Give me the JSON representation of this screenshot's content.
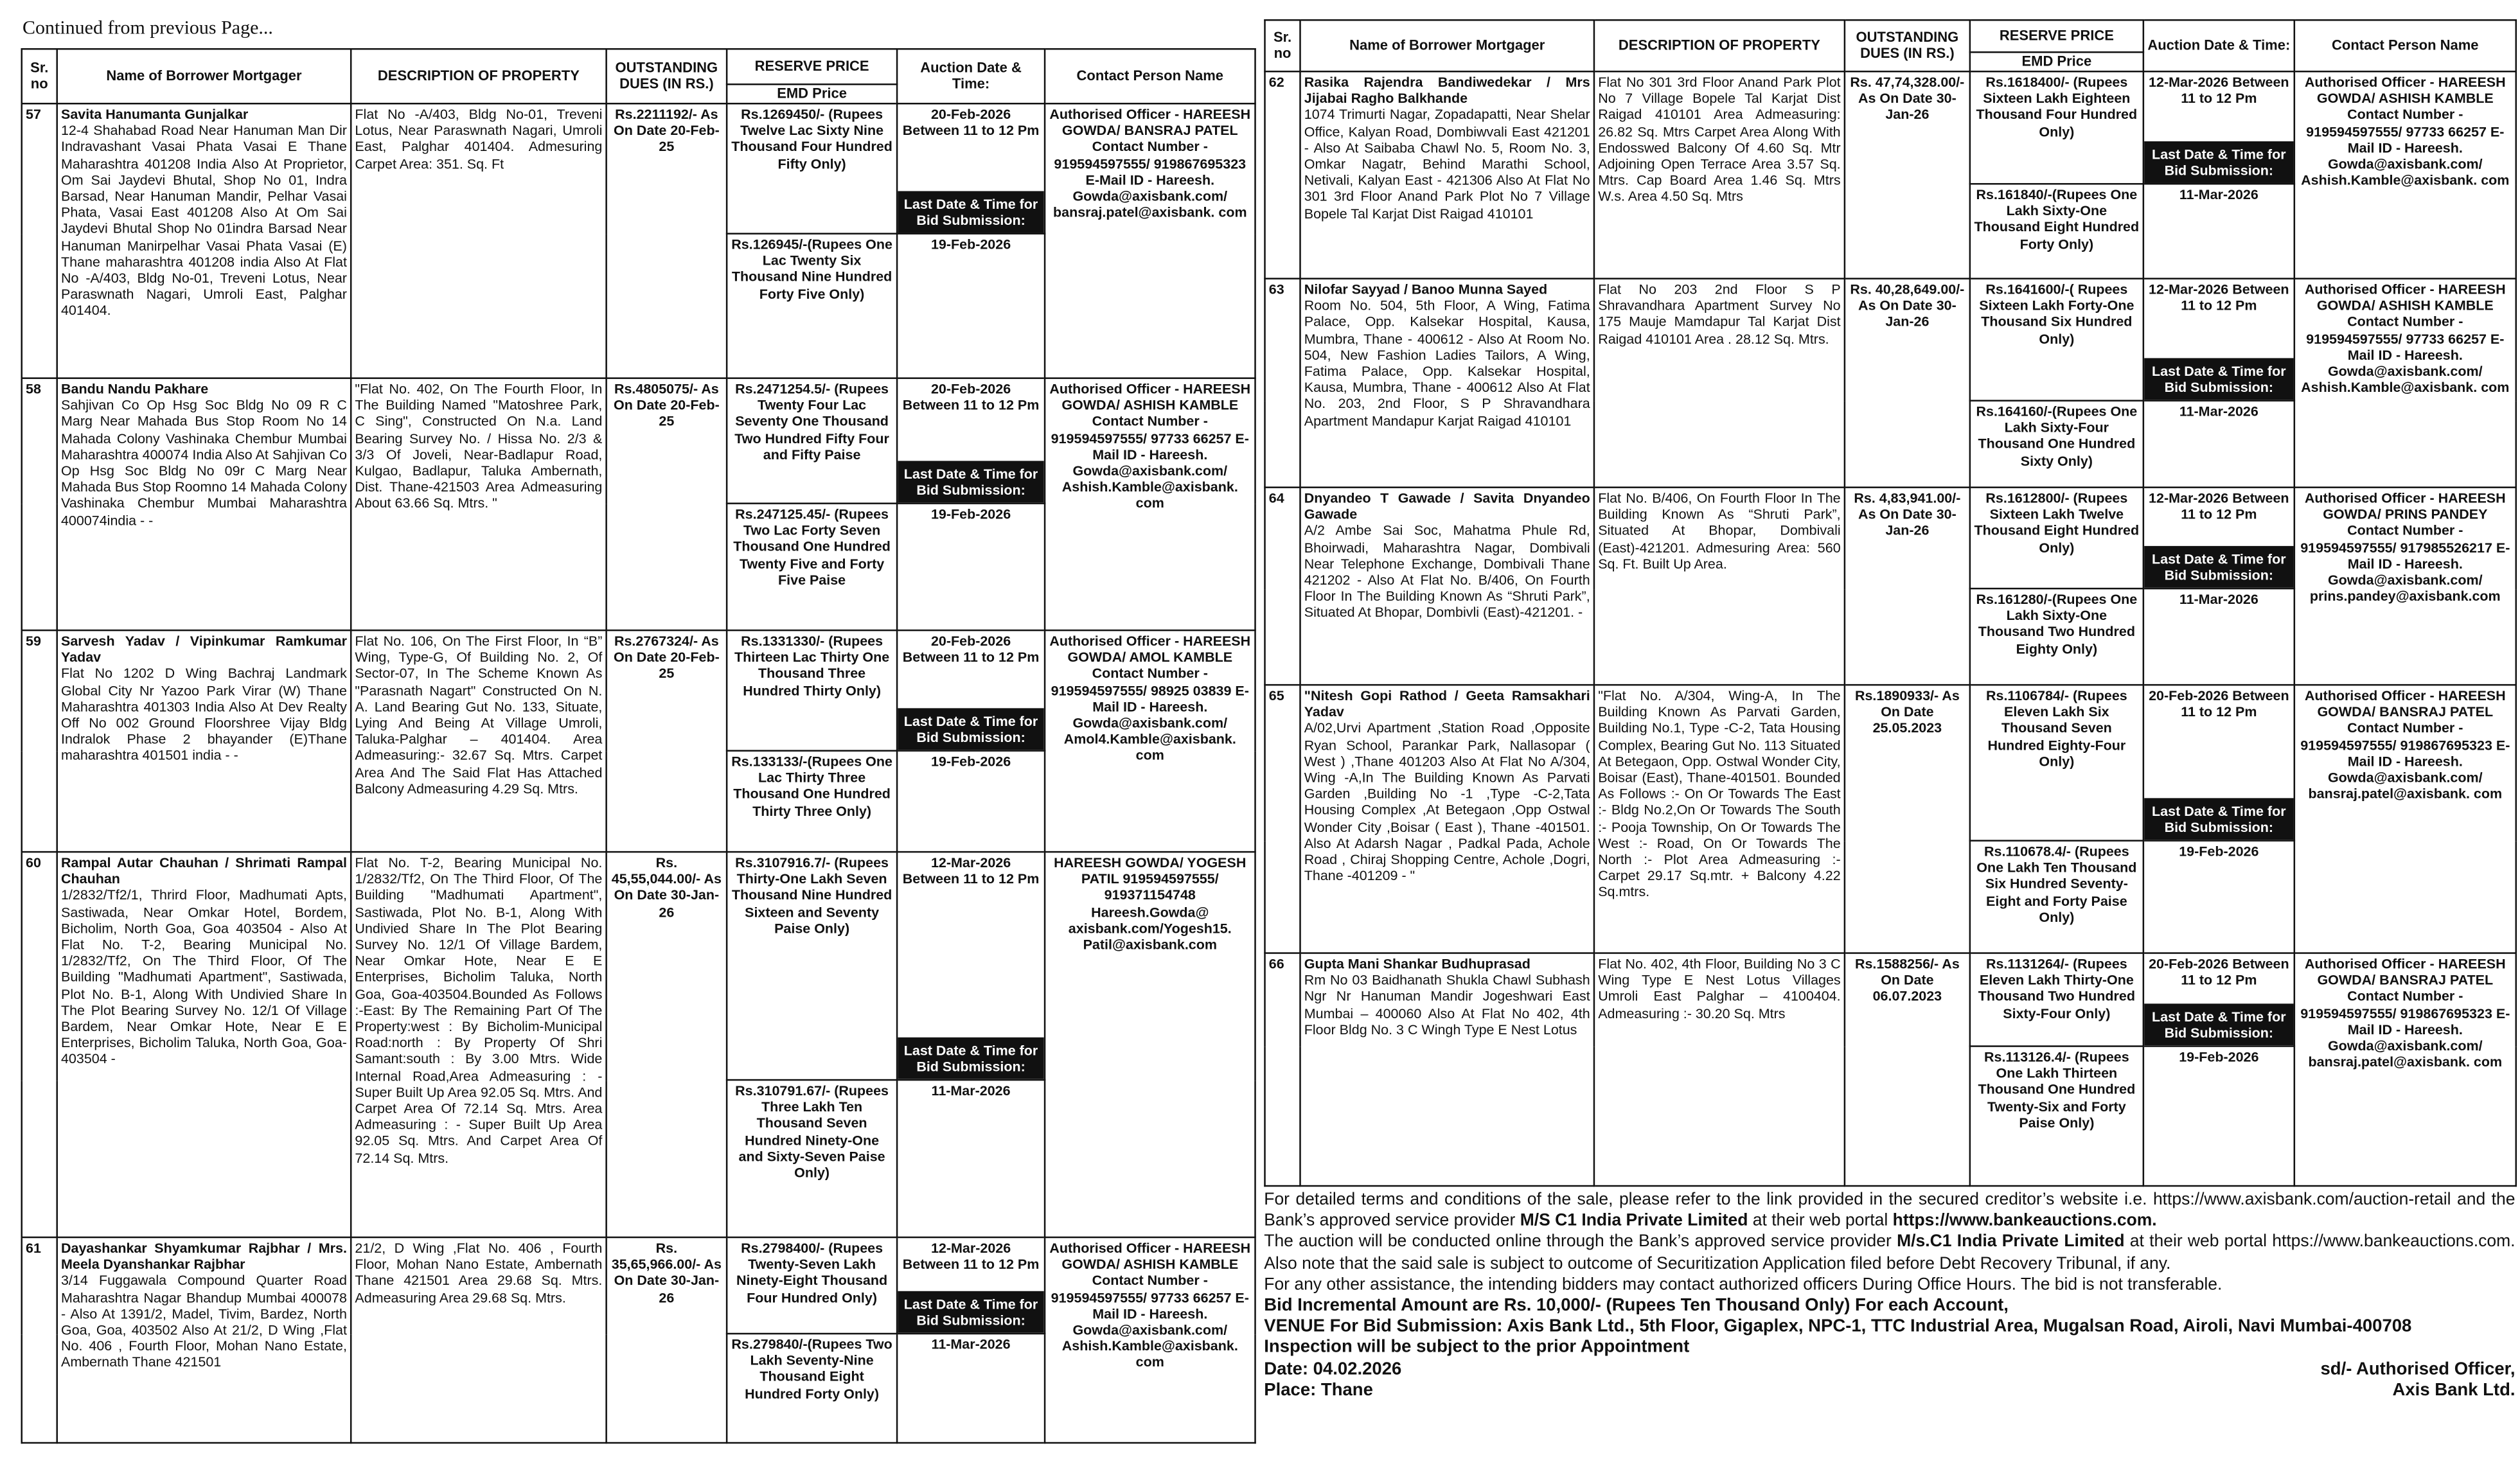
{
  "header": {
    "continued": "Continued from previous Page..."
  },
  "columns": {
    "sr": "Sr. no",
    "borrower": "Name of Borrower Mortgager",
    "description": "DESCRIPTION OF PROPERTY",
    "dues": "OUTSTANDING DUES (IN RS.)",
    "reserve": "RESERVE PRICE",
    "emd": "EMD Price",
    "auction": "Auction Date & Time:",
    "contact": "Contact Person Name",
    "last_date_label": "Last Date & Time for Bid Submission:"
  },
  "left_table": {
    "rows": [
      {
        "sr": "57",
        "name": "Savita Hanumanta Gunjalkar",
        "address": "12-4 Shahabad Road Near Hanuman Man Dir Indravashant Vasai Phata Vasai E Thane Maharashtra 401208 India Also At Proprietor, Om Sai Jaydevi Bhutal, Shop No 01, Indra Barsad, Near Hanuman Mandir, Pelhar Vasai Phata, Vasai East 401208 Also At Om Sai Jaydevi Bhutal Shop No 01indra Barsad Near Hanuman Manirpelhar Vasai Phata Vasai (E) Thane maharashtra 401208 india Also At Flat No -A/403, Bldg No-01, Treveni Lotus, Near Paraswnath Nagari, Umroli East, Palghar 401404.",
        "description": "Flat No -A/403, Bldg No-01, Treveni Lotus, Near Paraswnath Nagari, Umroli East, Palghar 401404. Admesuring Carpet Area: 351. Sq. Ft",
        "dues": "Rs.2211192/- As On Date 20-Feb-25",
        "reserve": "Rs.1269450/- (Rupees Twelve Lac Sixty Nine Thousand Four Hundred Fifty Only)",
        "auction": "20-Feb-2026 Between 11 to 12 Pm",
        "emd": "Rs.126945/-(Rupees One Lac Twenty Six Thousand Nine Hundred Forty Five Only)",
        "last_date": "19-Feb-2026",
        "contact": "Authorised Officer - HAREESH GOWDA/ BANSRAJ PATEL Contact Number - 919594597555/ 919867695323 E-Mail ID - Hareesh. Gowda@axisbank.com/ bansraj.patel@axisbank. com"
      },
      {
        "sr": "58",
        "name": "Bandu Nandu Pakhare",
        "address": "Sahjivan Co Op Hsg Soc Bldg No 09 R C Marg Near Mahada Bus Stop Room No 14 Mahada Colony Vashinaka Chembur Mumbai Maharashtra 400074 India Also At Sahjivan Co Op Hsg Soc Bldg No 09r C Marg Near Mahada Bus Stop Roomno 14 Mahada Colony Vashinaka Chembur Mumbai Maharashtra 400074india - -",
        "description": "\"Flat No. 402, On The Fourth Floor, In The Building Named \"Matoshree Park, C Sing\", Constructed On N.a. Land Bearing Survey No. / Hissa No. 2/3 & 3/3 Of Joveli, Near-Badlapur Road, Kulgao, Badlapur, Taluka Ambernath, Dist. Thane-421503 Area Admeasuring About 63.66 Sq. Mtrs. \"",
        "dues": "Rs.4805075/- As On Date 20-Feb-25",
        "reserve": "Rs.2471254.5/- (Rupees Twenty Four Lac Seventy One Thousand Two Hundred Fifty Four and Fifty Paise",
        "auction": "20-Feb-2026 Between 11 to 12 Pm",
        "emd": "Rs.247125.45/- (Rupees Two Lac Forty Seven Thousand One Hundred Twenty Five and Forty Five Paise",
        "last_date": "19-Feb-2026",
        "contact": "Authorised Officer - HAREESH GOWDA/ ASHISH KAMBLE Contact Number - 919594597555/ 97733 66257 E-Mail ID - Hareesh. Gowda@axisbank.com/ Ashish.Kamble@axisbank. com"
      },
      {
        "sr": "59",
        "name": "Sarvesh Yadav / Vipinkumar Ramkumar Yadav",
        "address": "Flat No 1202 D Wing Bachraj Landmark Global City Nr Yazoo Park Virar (W) Thane Maharashtra 401303 India Also At Dev Realty Off No 002 Ground Floorshree Vijay Bldg Indralok Phase 2 bhayander (E)Thane maharashtra 401501 india - -",
        "description": "Flat No. 106, On The First Floor, In “B” Wing, Type-G, Of Building No. 2, Of Sector-07, In The Scheme Known As \"Parasnath Nagart\" Constructed On N. A. Land Bearing Gut No. 133, Situate, Lying And Being At Village Umroli, Taluka-Palghar – 401404. Area Admeasuring:- 32.67 Sq. Mtrs. Carpet Area And The Said Flat Has Attached Balcony Admeasuring 4.29 Sq. Mtrs.",
        "dues": "Rs.2767324/- As On Date 20-Feb-25",
        "reserve": "Rs.1331330/- (Rupees Thirteen Lac Thirty One Thousand Three Hundred Thirty Only)",
        "auction": "20-Feb-2026 Between 11 to 12 Pm",
        "emd": "Rs.133133/-(Rupees One Lac Thirty Three Thousand One Hundred Thirty Three Only)",
        "last_date": "19-Feb-2026",
        "contact": "Authorised Officer - HAREESH GOWDA/ AMOL KAMBLE Contact Number - 919594597555/ 98925 03839 E-Mail ID - Hareesh. Gowda@axisbank.com/ Amol4.Kamble@axisbank. com"
      },
      {
        "sr": "60",
        "name": "Rampal Autar Chauhan / Shrimati Rampal Chauhan",
        "address": "1/2832/Tf2/1, Thrird Floor, Madhumati Apts, Sastiwada, Near Omkar Hotel, Bordem, Bicholim, North Goa, Goa 403504 - Also At Flat No. T-2, Bearing Municipal No. 1/2832/Tf2, On The Third Floor, Of The Building \"Madhumati Apartment\", Sastiwada, Plot No. B-1, Along With Undivied Share In The Plot Bearing Survey No. 12/1 Of Village Bardem, Near Omkar Hote, Near E E Enterprises, Bicholim Taluka, North Goa, Goa-403504 -",
        "description": "Flat No. T-2, Bearing Municipal No. 1/2832/Tf2, On The Third Floor, Of The Building \"Madhumati Apartment\", Sastiwada, Plot No. B-1, Along With Undivied Share In The Plot Bearing Survey No. 12/1 Of Village Bardem, Near Omkar Hote, Near E E Enterprises, Bicholim Taluka, North Goa, Goa-403504.Bounded As Follows :-East: By The Remaining Part Of The Property:west : By Bicholim-Municipal Road:north : By Property Of Shri Samant:south : By 3.00 Mtrs. Wide Internal Road,Area Admeasuring : - Super Built Up Area 92.05 Sq. Mtrs. And Carpet Area Of 72.14 Sq. Mtrs. Area Admeasuring : - Super Built Up Area 92.05 Sq. Mtrs. And Carpet Area Of 72.14 Sq. Mtrs.",
        "dues": "Rs. 45,55,044.00/- As On Date 30-Jan-26",
        "reserve": "Rs.3107916.7/- (Rupees Thirty-One Lakh Seven Thousand Nine Hundred Sixteen and Seventy Paise Only)",
        "auction": "12-Mar-2026 Between 11 to 12 Pm",
        "emd": "Rs.310791.67/- (Rupees Three Lakh Ten Thousand Seven Hundred Ninety-One and Sixty-Seven Paise Only)",
        "last_date": "11-Mar-2026",
        "contact": "HAREESH GOWDA/ YOGESH PATIL 919594597555/ 919371154748 Hareesh.Gowda@ axisbank.com/Yogesh15. Patil@axisbank.com"
      },
      {
        "sr": "61",
        "name": "Dayashankar Shyamkumar Rajbhar / Mrs. Meela Dyanshankar Rajbhar",
        "address": "3/14 Fuggawala Compound Quarter Road Maharashtra Nagar Bhandup Mumbai 400078 - Also At 1391/2, Madel, Tivim, Bardez, North Goa, Goa, 403502 Also At 21/2, D Wing ,Flat No. 406 , Fourth Floor, Mohan Nano Estate, Ambernath Thane 421501",
        "description": "21/2, D Wing ,Flat No. 406 , Fourth Floor, Mohan Nano Estate, Ambernath Thane 421501 Area 29.68 Sq. Mtrs. Admeasuring Area 29.68 Sq. Mtrs.",
        "dues": "Rs. 35,65,966.00/- As On Date 30-Jan-26",
        "reserve": "Rs.2798400/- (Rupees Twenty-Seven Lakh Ninety-Eight Thousand Four Hundred Only)",
        "auction": "12-Mar-2026 Between 11 to 12 Pm",
        "emd": "Rs.279840/-(Rupees Two Lakh Seventy-Nine Thousand Eight Hundred Forty Only)",
        "last_date": "11-Mar-2026",
        "contact": "Authorised Officer - HAREESH GOWDA/ ASHISH KAMBLE Contact Number - 919594597555/ 97733 66257 E-Mail ID - Hareesh. Gowda@axisbank.com/ Ashish.Kamble@axisbank. com"
      }
    ]
  },
  "right_table": {
    "rows": [
      {
        "sr": "62",
        "name": "Rasika Rajendra Bandiwedekar / Mrs Jijabai Ragho Balkhande",
        "address": "1074 Trimurti Nagar, Zopadapatti, Near Shelar Office, Kalyan Road, Dombiwvali East 421201 - Also At Saibaba Chawl No. 5, Room No. 3, Omkar Nagatr, Behind Marathi School, Netivali, Kalyan East - 421306 Also At Flat No 301 3rd Floor Anand Park Plot No 7 Village Bopele Tal Karjat Dist Raigad 410101",
        "description": "Flat No 301 3rd Floor Anand Park Plot No 7 Village Bopele Tal Karjat Dist Raigad 410101 Area Admeasuring: 26.82 Sq. Mtrs Carpet Area Along With Endosswed Balcony Of 4.60 Sq. Mtr Adjoining Open Terrace Area 3.57 Sq. Mtrs. Cap Board Area 1.46 Sq. Mtrs W.s. Area 4.50 Sq. Mtrs",
        "dues": "Rs. 47,74,328.00/- As On Date 30-Jan-26",
        "reserve": "Rs.1618400/- (Rupees Sixteen Lakh Eighteen Thousand Four Hundred Only)",
        "auction": "12-Mar-2026 Between 11 to 12 Pm",
        "emd": "Rs.161840/-(Rupees One Lakh Sixty-One Thousand Eight Hundred Forty Only)",
        "last_date": "11-Mar-2026",
        "contact": "Authorised Officer - HAREESH GOWDA/ ASHISH KAMBLE Contact Number - 919594597555/ 97733 66257 E-Mail ID - Hareesh. Gowda@axisbank.com/ Ashish.Kamble@axisbank. com"
      },
      {
        "sr": "63",
        "name": "Nilofar Sayyad / Banoo Munna Sayed",
        "address": "Room No. 504, 5th Floor, A Wing, Fatima Palace, Opp. Kalsekar Hospital, Kausa, Mumbra, Thane - 400612 - Also At Room No. 504, New Fashion Ladies Tailors, A Wing, Fatima Palace, Opp. Kalsekar Hospital, Kausa, Mumbra, Thane - 400612 Also At Flat No. 203, 2nd Floor, S P Shravandhara Apartment Mandapur Karjat Raigad 410101",
        "description": "Flat No 203 2nd Floor S P Shravandhara Apartment Survey No 175 Mauje Mamdapur Tal Karjat Dist Raigad 410101 Area . 28.12 Sq. Mtrs.",
        "dues": "Rs. 40,28,649.00/- As On Date 30-Jan-26",
        "reserve": "Rs.1641600/-( Rupees Sixteen Lakh Forty-One Thousand Six Hundred Only)",
        "auction": "12-Mar-2026 Between 11 to 12 Pm",
        "emd": "Rs.164160/-(Rupees One Lakh Sixty-Four Thousand One Hundred Sixty Only)",
        "last_date": "11-Mar-2026",
        "contact": "Authorised Officer - HAREESH GOWDA/ ASHISH KAMBLE Contact Number - 919594597555/ 97733 66257 E-Mail ID - Hareesh. Gowda@axisbank.com/ Ashish.Kamble@axisbank. com"
      },
      {
        "sr": "64",
        "name": "Dnyandeo T Gawade / Savita Dnyandeo Gawade",
        "address": "A/2 Ambe Sai Soc, Mahatma Phule Rd, Bhoirwadi, Maharashtra Nagar, Dombivali Near Telephone Exchange, Dombivali Thane 421202 - Also At Flat No. B/406, On Fourth Floor In The Building Known As “Shruti Park”, Situated At Bhopar, Dombivli (East)-421201. -",
        "description": "Flat No. B/406, On Fourth Floor In The Building Known As “Shruti Park”, Situated At Bhopar, Dombivali (East)-421201. Admesuring Area: 560 Sq. Ft. Built Up Area.",
        "dues": "Rs. 4,83,941.00/- As On Date 30-Jan-26",
        "reserve": "Rs.1612800/- (Rupees Sixteen Lakh Twelve Thousand Eight Hundred Only)",
        "auction": "12-Mar-2026 Between 11 to 12 Pm",
        "emd": "Rs.161280/-(Rupees One Lakh Sixty-One Thousand Two Hundred Eighty Only)",
        "last_date": "11-Mar-2026",
        "contact": "Authorised Officer - HAREESH GOWDA/ PRINS PANDEY Contact Number - 919594597555/ 917985526217 E-Mail ID - Hareesh. Gowda@axisbank.com/ prins.pandey@axisbank.com"
      },
      {
        "sr": "65",
        "name": "\"Nitesh Gopi Rathod / Geeta Ramsakhari Yadav",
        "address": "A/02,Urvi Apartment ,Station Road ,Opposite Ryan School, Parankar Park, Nallasopar ( West ) ,Thane 401203 Also At Flat No A/304, Wing -A,In The Building Known As Parvati Garden ,Building No -1 ,Type -C-2,Tata Housing Complex ,At Betegaon ,Opp Ostwal Wonder City ,Boisar ( East ), Thane -401501. Also At Adarsh Nagar , Padkal Pada, Achole Road , Chiraj Shopping Centre, Achole ,Dogri, Thane -401209 - \"",
        "description": "\"Flat No. A/304, Wing-A, In The Building Known As Parvati Garden, Building No.1, Type -C-2, Tata Housing Complex, Bearing Gut No. 113 Situated At Betegaon, Opp. Ostwal Wonder City, Boisar (East), Thane-401501. Bounded As Follows :- On Or Towards The East :- Bldg No.2,On Or Towards The South :- Pooja Township, On Or Towards The West :- Road, On Or Towards The North :- Plot Area Admeasuring :- Carpet 29.17 Sq.mtr. + Balcony 4.22 Sq.mtrs.",
        "dues": "Rs.1890933/- As On Date 25.05.2023",
        "reserve": "Rs.1106784/- (Rupees Eleven Lakh Six Thousand Seven Hundred Eighty-Four Only)",
        "auction": "20-Feb-2026 Between 11 to 12 Pm",
        "emd": "Rs.110678.4/- (Rupees One Lakh Ten Thousand Six Hundred Seventy-Eight and Forty Paise Only)",
        "last_date": "19-Feb-2026",
        "contact": "Authorised Officer - HAREESH GOWDA/ BANSRAJ PATEL Contact Number - 919594597555/ 919867695323 E-Mail ID - Hareesh. Gowda@axisbank.com/ bansraj.patel@axisbank. com"
      },
      {
        "sr": "66",
        "name": "Gupta Mani Shankar Budhuprasad",
        "address": "Rm No 03 Baidhanath Shukla Chawl Subhash Ngr Nr Hanuman Mandir Jogeshwari East Mumbai – 400060 Also At Flat No 402, 4th Floor Bldg No. 3 C Wingh Type E Nest Lotus",
        "description": "Flat No. 402, 4th Floor, Building No 3 C Wing Type E Nest Lotus Villages Umroli East Palghar – 4100404. Admeasuring :- 30.20 Sq. Mtrs",
        "dues": "Rs.1588256/- As On Date 06.07.2023",
        "reserve": "Rs.1131264/- (Rupees Eleven Lakh Thirty-One Thousand Two Hundred Sixty-Four Only)",
        "auction": "20-Feb-2026 Between 11 to 12 Pm",
        "emd": "Rs.113126.4/- (Rupees One Lakh Thirteen Thousand One Hundred Twenty-Six and Forty Paise Only)",
        "last_date": "19-Feb-2026",
        "contact": "Authorised Officer - HAREESH GOWDA/ BANSRAJ PATEL Contact Number - 919594597555/ 919867695323 E-Mail ID - Hareesh. Gowda@axisbank.com/ bansraj.patel@axisbank. com"
      }
    ]
  },
  "footer": {
    "terms": [
      "For detailed terms and conditions of the sale, please refer to the link provided in the secured creditor’s website i.e. https://www.axisbank.com/auction-retail and the Bank’s approved service provider",
      "M/S C1 India Private Limited",
      "at their web portal",
      "https://www.bankeauctions.com."
    ],
    "auction_note": [
      "The auction will be conducted online through the Bank’s approved service provider",
      "M/s.C1 India Private Limited",
      "at their web portal https://www.bankeauctions.com. Also note that the said sale is subject to outcome of Securitization Application filed before Debt Recovery Tribunal, if any."
    ],
    "assistance": "For any other assistance, the intending bidders may contact authorized officers During Office Hours. The bid is not transferable.",
    "increment": "Bid Incremental Amount are Rs. 10,000/- (Rupees Ten Thousand Only) For each Account,",
    "venue": "VENUE For Bid Submission: Axis Bank Ltd., 5th Floor, Gigaplex, NPC-1, TTC Industrial Area, Mugalsan Road, Airoli, Navi Mumbai-400708",
    "inspection": "Inspection will be subject to the prior Appointment",
    "date": "Date: 04.02.2026",
    "place": "Place: Thane",
    "signatory": "sd/- Authorised Officer,",
    "bank": "Axis Bank Ltd."
  }
}
